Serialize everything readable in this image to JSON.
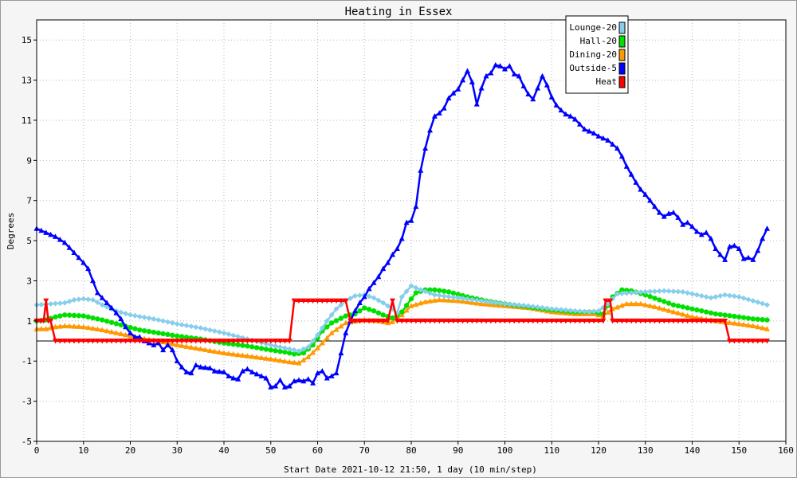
{
  "chart_data": {
    "type": "line",
    "title": "Heating in Essex",
    "xlabel": "Start Date 2021-10-12 21:50, 1 day (10 min/step)",
    "ylabel": "Degrees",
    "xlim": [
      0,
      160
    ],
    "ylim": [
      -5,
      16
    ],
    "x_ticks": [
      0,
      10,
      20,
      30,
      40,
      50,
      60,
      70,
      80,
      90,
      100,
      110,
      120,
      130,
      140,
      150,
      160
    ],
    "y_ticks": [
      -5,
      -3,
      -1,
      1,
      3,
      5,
      7,
      9,
      11,
      13,
      15
    ],
    "grid": true,
    "zero_line": true,
    "legend_position": "top-right",
    "series": [
      {
        "name": "Lounge-20",
        "color": "#87ceeb",
        "marker": "diamond",
        "points": [
          [
            0,
            1.8
          ],
          [
            3,
            1.85
          ],
          [
            6,
            1.9
          ],
          [
            8,
            2.05
          ],
          [
            10,
            2.1
          ],
          [
            12,
            2.05
          ],
          [
            14,
            1.8
          ],
          [
            17,
            1.5
          ],
          [
            20,
            1.3
          ],
          [
            25,
            1.1
          ],
          [
            30,
            0.85
          ],
          [
            35,
            0.65
          ],
          [
            40,
            0.4
          ],
          [
            45,
            0.1
          ],
          [
            50,
            -0.2
          ],
          [
            54,
            -0.4
          ],
          [
            56,
            -0.5
          ],
          [
            58,
            -0.3
          ],
          [
            60,
            0.3
          ],
          [
            62,
            1.0
          ],
          [
            64,
            1.6
          ],
          [
            66,
            2.0
          ],
          [
            68,
            2.25
          ],
          [
            70,
            2.3
          ],
          [
            72,
            2.15
          ],
          [
            74,
            1.9
          ],
          [
            76,
            1.6
          ],
          [
            77,
            1.4
          ],
          [
            78,
            2.2
          ],
          [
            80,
            2.75
          ],
          [
            82,
            2.55
          ],
          [
            85,
            2.3
          ],
          [
            90,
            2.15
          ],
          [
            95,
            2.0
          ],
          [
            100,
            1.85
          ],
          [
            105,
            1.75
          ],
          [
            110,
            1.6
          ],
          [
            115,
            1.5
          ],
          [
            118,
            1.45
          ],
          [
            120,
            1.5
          ],
          [
            122,
            1.85
          ],
          [
            124,
            2.35
          ],
          [
            127,
            2.4
          ],
          [
            130,
            2.45
          ],
          [
            134,
            2.5
          ],
          [
            138,
            2.45
          ],
          [
            141,
            2.3
          ],
          [
            144,
            2.15
          ],
          [
            147,
            2.3
          ],
          [
            150,
            2.2
          ],
          [
            153,
            2.0
          ],
          [
            156,
            1.8
          ]
        ]
      },
      {
        "name": "Hall-20",
        "color": "#00e000",
        "marker": "circle",
        "points": [
          [
            0,
            1.0
          ],
          [
            2,
            1.05
          ],
          [
            4,
            1.2
          ],
          [
            6,
            1.3
          ],
          [
            10,
            1.25
          ],
          [
            14,
            1.05
          ],
          [
            18,
            0.8
          ],
          [
            22,
            0.55
          ],
          [
            26,
            0.4
          ],
          [
            30,
            0.25
          ],
          [
            35,
            0.1
          ],
          [
            40,
            -0.1
          ],
          [
            45,
            -0.25
          ],
          [
            50,
            -0.45
          ],
          [
            53,
            -0.55
          ],
          [
            55,
            -0.65
          ],
          [
            57,
            -0.6
          ],
          [
            59,
            -0.2
          ],
          [
            61,
            0.5
          ],
          [
            63,
            0.9
          ],
          [
            66,
            1.25
          ],
          [
            68,
            1.35
          ],
          [
            70,
            1.65
          ],
          [
            72,
            1.5
          ],
          [
            74,
            1.3
          ],
          [
            76,
            1.15
          ],
          [
            78,
            1.45
          ],
          [
            80,
            2.1
          ],
          [
            81,
            2.4
          ],
          [
            83,
            2.55
          ],
          [
            85,
            2.55
          ],
          [
            88,
            2.45
          ],
          [
            92,
            2.2
          ],
          [
            96,
            2.0
          ],
          [
            100,
            1.85
          ],
          [
            105,
            1.7
          ],
          [
            110,
            1.55
          ],
          [
            115,
            1.45
          ],
          [
            119,
            1.45
          ],
          [
            121,
            1.35
          ],
          [
            123,
            2.2
          ],
          [
            125,
            2.55
          ],
          [
            127,
            2.5
          ],
          [
            130,
            2.3
          ],
          [
            133,
            2.05
          ],
          [
            136,
            1.8
          ],
          [
            140,
            1.6
          ],
          [
            145,
            1.35
          ],
          [
            150,
            1.2
          ],
          [
            153,
            1.1
          ],
          [
            156,
            1.05
          ]
        ]
      },
      {
        "name": "Dining-20",
        "color": "#ff9900",
        "marker": "triangle",
        "points": [
          [
            0,
            0.6
          ],
          [
            2,
            0.6
          ],
          [
            4,
            0.7
          ],
          [
            6,
            0.75
          ],
          [
            10,
            0.7
          ],
          [
            14,
            0.55
          ],
          [
            18,
            0.35
          ],
          [
            22,
            0.15
          ],
          [
            26,
            0.0
          ],
          [
            30,
            -0.2
          ],
          [
            35,
            -0.4
          ],
          [
            40,
            -0.6
          ],
          [
            45,
            -0.75
          ],
          [
            50,
            -0.9
          ],
          [
            54,
            -1.05
          ],
          [
            56,
            -1.1
          ],
          [
            58,
            -0.8
          ],
          [
            60,
            -0.35
          ],
          [
            63,
            0.4
          ],
          [
            66,
            0.9
          ],
          [
            70,
            1.05
          ],
          [
            73,
            1.0
          ],
          [
            75,
            0.9
          ],
          [
            76,
            0.95
          ],
          [
            78,
            1.3
          ],
          [
            80,
            1.75
          ],
          [
            83,
            1.95
          ],
          [
            86,
            2.05
          ],
          [
            90,
            2.0
          ],
          [
            95,
            1.85
          ],
          [
            100,
            1.75
          ],
          [
            105,
            1.65
          ],
          [
            110,
            1.45
          ],
          [
            115,
            1.35
          ],
          [
            119,
            1.35
          ],
          [
            121,
            1.25
          ],
          [
            123,
            1.6
          ],
          [
            126,
            1.85
          ],
          [
            129,
            1.85
          ],
          [
            132,
            1.7
          ],
          [
            136,
            1.45
          ],
          [
            140,
            1.2
          ],
          [
            145,
            1.0
          ],
          [
            150,
            0.85
          ],
          [
            153,
            0.75
          ],
          [
            156,
            0.6
          ]
        ]
      },
      {
        "name": "Outside-5",
        "color": "#0000ff",
        "marker": "triangle-up",
        "points": [
          [
            0,
            5.6
          ],
          [
            2,
            5.4
          ],
          [
            4,
            5.2
          ],
          [
            6,
            4.9
          ],
          [
            8,
            4.4
          ],
          [
            10,
            3.9
          ],
          [
            11,
            3.6
          ],
          [
            12,
            3.0
          ],
          [
            13,
            2.4
          ],
          [
            15,
            1.9
          ],
          [
            17,
            1.4
          ],
          [
            18,
            1.1
          ],
          [
            19,
            0.7
          ],
          [
            20,
            0.4
          ],
          [
            21,
            0.2
          ],
          [
            22,
            0.2
          ],
          [
            23,
            0.0
          ],
          [
            24,
            -0.1
          ],
          [
            25,
            -0.2
          ],
          [
            26,
            -0.1
          ],
          [
            27,
            -0.45
          ],
          [
            28,
            -0.2
          ],
          [
            29,
            -0.45
          ],
          [
            30,
            -1.0
          ],
          [
            31,
            -1.3
          ],
          [
            32,
            -1.55
          ],
          [
            33,
            -1.6
          ],
          [
            34,
            -1.2
          ],
          [
            35,
            -1.3
          ],
          [
            37,
            -1.35
          ],
          [
            38,
            -1.5
          ],
          [
            40,
            -1.55
          ],
          [
            41,
            -1.75
          ],
          [
            42,
            -1.85
          ],
          [
            43,
            -1.9
          ],
          [
            44,
            -1.5
          ],
          [
            45,
            -1.4
          ],
          [
            46,
            -1.55
          ],
          [
            47,
            -1.65
          ],
          [
            48,
            -1.75
          ],
          [
            49,
            -1.85
          ],
          [
            50,
            -2.3
          ],
          [
            51,
            -2.25
          ],
          [
            52,
            -1.95
          ],
          [
            53,
            -2.3
          ],
          [
            54,
            -2.25
          ],
          [
            55,
            -2.0
          ],
          [
            56,
            -1.95
          ],
          [
            57,
            -2.0
          ],
          [
            58,
            -1.9
          ],
          [
            59,
            -2.1
          ],
          [
            60,
            -1.6
          ],
          [
            61,
            -1.5
          ],
          [
            62,
            -1.85
          ],
          [
            63,
            -1.75
          ],
          [
            64,
            -1.6
          ],
          [
            65,
            -0.6
          ],
          [
            66,
            0.4
          ],
          [
            67,
            1.0
          ],
          [
            68,
            1.5
          ],
          [
            69,
            1.9
          ],
          [
            70,
            2.2
          ],
          [
            71,
            2.6
          ],
          [
            72,
            2.9
          ],
          [
            73,
            3.2
          ],
          [
            74,
            3.6
          ],
          [
            75,
            3.9
          ],
          [
            76,
            4.3
          ],
          [
            77,
            4.6
          ],
          [
            78,
            5.1
          ],
          [
            79,
            5.9
          ],
          [
            80,
            6.0
          ],
          [
            81,
            6.7
          ],
          [
            82,
            8.5
          ],
          [
            83,
            9.6
          ],
          [
            84,
            10.5
          ],
          [
            85,
            11.2
          ],
          [
            86,
            11.35
          ],
          [
            87,
            11.6
          ],
          [
            88,
            12.1
          ],
          [
            89,
            12.35
          ],
          [
            90,
            12.55
          ],
          [
            91,
            13.0
          ],
          [
            92,
            13.45
          ],
          [
            93,
            12.9
          ],
          [
            94,
            11.8
          ],
          [
            95,
            12.6
          ],
          [
            96,
            13.2
          ],
          [
            97,
            13.35
          ],
          [
            98,
            13.75
          ],
          [
            99,
            13.7
          ],
          [
            100,
            13.55
          ],
          [
            101,
            13.7
          ],
          [
            102,
            13.3
          ],
          [
            103,
            13.2
          ],
          [
            104,
            12.7
          ],
          [
            105,
            12.3
          ],
          [
            106,
            12.05
          ],
          [
            107,
            12.6
          ],
          [
            108,
            13.2
          ],
          [
            109,
            12.75
          ],
          [
            110,
            12.15
          ],
          [
            111,
            11.75
          ],
          [
            112,
            11.5
          ],
          [
            113,
            11.3
          ],
          [
            114,
            11.2
          ],
          [
            115,
            11.05
          ],
          [
            116,
            10.8
          ],
          [
            117,
            10.55
          ],
          [
            118,
            10.45
          ],
          [
            119,
            10.35
          ],
          [
            120,
            10.2
          ],
          [
            121,
            10.1
          ],
          [
            122,
            10.0
          ],
          [
            123,
            9.8
          ],
          [
            124,
            9.6
          ],
          [
            125,
            9.2
          ],
          [
            126,
            8.7
          ],
          [
            127,
            8.3
          ],
          [
            128,
            7.9
          ],
          [
            129,
            7.55
          ],
          [
            130,
            7.3
          ],
          [
            131,
            7.0
          ],
          [
            132,
            6.7
          ],
          [
            133,
            6.4
          ],
          [
            134,
            6.2
          ],
          [
            135,
            6.35
          ],
          [
            136,
            6.4
          ],
          [
            137,
            6.15
          ],
          [
            138,
            5.8
          ],
          [
            139,
            5.9
          ],
          [
            140,
            5.7
          ],
          [
            141,
            5.45
          ],
          [
            142,
            5.3
          ],
          [
            143,
            5.4
          ],
          [
            144,
            5.1
          ],
          [
            145,
            4.6
          ],
          [
            146,
            4.3
          ],
          [
            147,
            4.05
          ],
          [
            148,
            4.7
          ],
          [
            149,
            4.75
          ],
          [
            150,
            4.6
          ],
          [
            151,
            4.1
          ],
          [
            152,
            4.15
          ],
          [
            153,
            4.05
          ],
          [
            154,
            4.5
          ],
          [
            155,
            5.1
          ],
          [
            156,
            5.6
          ]
        ]
      },
      {
        "name": "Heat",
        "color": "#ff0000",
        "marker": "triangle-down",
        "points": [
          [
            0,
            1
          ],
          [
            1.5,
            1
          ],
          [
            2,
            2
          ],
          [
            2.5,
            1
          ],
          [
            3,
            1
          ],
          [
            4,
            0
          ],
          [
            54,
            0
          ],
          [
            55,
            2
          ],
          [
            66,
            2
          ],
          [
            67,
            1
          ],
          [
            75,
            1
          ],
          [
            76,
            2
          ],
          [
            77,
            1
          ],
          [
            121,
            1
          ],
          [
            121.5,
            2
          ],
          [
            122.5,
            2
          ],
          [
            123,
            1
          ],
          [
            147,
            1
          ],
          [
            148,
            0
          ],
          [
            156,
            0
          ]
        ]
      }
    ]
  }
}
